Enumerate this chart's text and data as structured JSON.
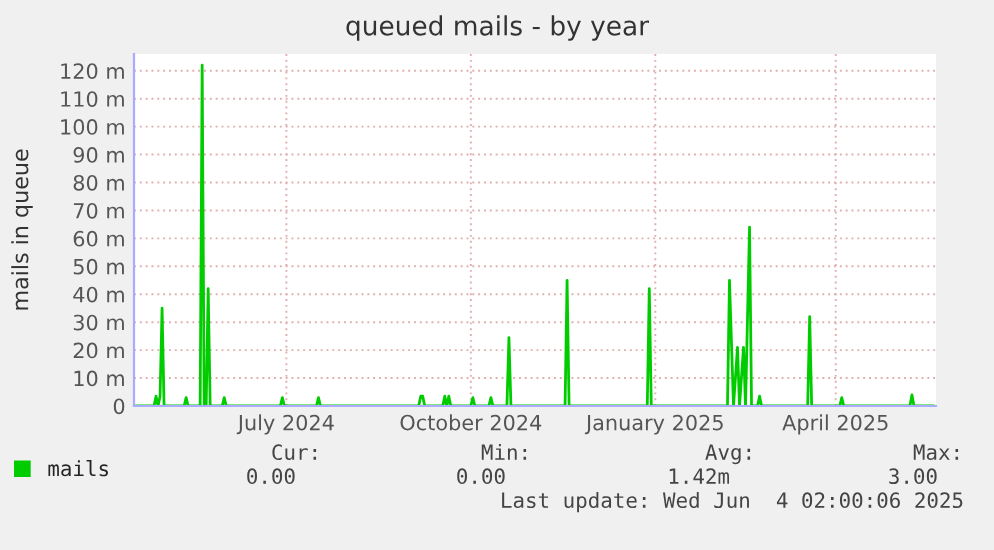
{
  "chart_data": {
    "type": "line",
    "title": "queued mails - by year",
    "ylabel": "mails in queue",
    "x": [
      "2024-05-01",
      "2024-05-11",
      "2024-05-12",
      "2024-05-13",
      "2024-05-14",
      "2024-05-15",
      "2024-05-16",
      "2024-05-26",
      "2024-05-27",
      "2024-05-28",
      "2024-06-03",
      "2024-06-04",
      "2024-06-05",
      "2024-06-06",
      "2024-06-07",
      "2024-06-08",
      "2024-06-14",
      "2024-06-15",
      "2024-06-16",
      "2024-07-13",
      "2024-07-14",
      "2024-07-15",
      "2024-07-31",
      "2024-08-01",
      "2024-08-02",
      "2024-09-20",
      "2024-09-21",
      "2024-09-22",
      "2024-09-23",
      "2024-10-02",
      "2024-10-03",
      "2024-10-04",
      "2024-10-05",
      "2024-10-06",
      "2024-10-16",
      "2024-10-17",
      "2024-10-18",
      "2024-10-25",
      "2024-10-26",
      "2024-10-27",
      "2024-11-03",
      "2024-11-04",
      "2024-11-05",
      "2024-12-02",
      "2024-12-03",
      "2024-12-04",
      "2025-01-12",
      "2025-01-13",
      "2025-01-14",
      "2025-02-21",
      "2025-02-22",
      "2025-02-24",
      "2025-02-26",
      "2025-02-27",
      "2025-03-01",
      "2025-03-02",
      "2025-03-04",
      "2025-03-05",
      "2025-03-08",
      "2025-03-09",
      "2025-03-10",
      "2025-04-02",
      "2025-04-03",
      "2025-04-04",
      "2025-04-18",
      "2025-04-19",
      "2025-04-20",
      "2025-05-23",
      "2025-05-24",
      "2025-05-25",
      "2025-06-04"
    ],
    "series": [
      {
        "name": "mails",
        "color": "#00cc00",
        "values": [
          0,
          0,
          3.5,
          0,
          3.5,
          35,
          0,
          0,
          3,
          0,
          0,
          122,
          0,
          0,
          42,
          0,
          0,
          3,
          0,
          0,
          3,
          0,
          0,
          3,
          0,
          0,
          3.5,
          3.5,
          0,
          0,
          3.5,
          0,
          3.5,
          0,
          0,
          3,
          0,
          0,
          3,
          0,
          0,
          24.5,
          0,
          0,
          45,
          0,
          0,
          42,
          0,
          0,
          45,
          0,
          21,
          0,
          21,
          0,
          64,
          0,
          0,
          3.5,
          0,
          0,
          32,
          0,
          0,
          3,
          0,
          0,
          4,
          0,
          0
        ]
      }
    ],
    "xlim": [
      "2024-05-01",
      "2025-06-05"
    ],
    "xticks": [
      {
        "value": "2024-07-16",
        "label": "July 2024"
      },
      {
        "value": "2024-10-16",
        "label": "October 2024"
      },
      {
        "value": "2025-01-16",
        "label": "January 2025"
      },
      {
        "value": "2025-04-16",
        "label": "April 2025"
      }
    ],
    "ylim": [
      0,
      126
    ],
    "yticks": [
      0,
      {
        "value": 10,
        "label": "10 m"
      },
      {
        "value": 20,
        "label": "20 m"
      },
      {
        "value": 30,
        "label": "30 m"
      },
      {
        "value": 40,
        "label": "40 m"
      },
      {
        "value": 50,
        "label": "50 m"
      },
      {
        "value": 60,
        "label": "60 m"
      },
      {
        "value": 70,
        "label": "70 m"
      },
      {
        "value": 80,
        "label": "80 m"
      },
      {
        "value": 90,
        "label": "90 m"
      },
      {
        "value": 100,
        "label": "100 m"
      },
      {
        "value": 110,
        "label": "110 m"
      },
      {
        "value": 120,
        "label": "120 m"
      }
    ],
    "grid": true,
    "legend": "bottom left",
    "annotations": [
      "Cur:",
      "0.00",
      "Min:",
      "0.00",
      "Avg:",
      "1.42m",
      "Max:",
      "3.00",
      "Last update: Wed Jun  4 02:00:06 2025"
    ]
  }
}
